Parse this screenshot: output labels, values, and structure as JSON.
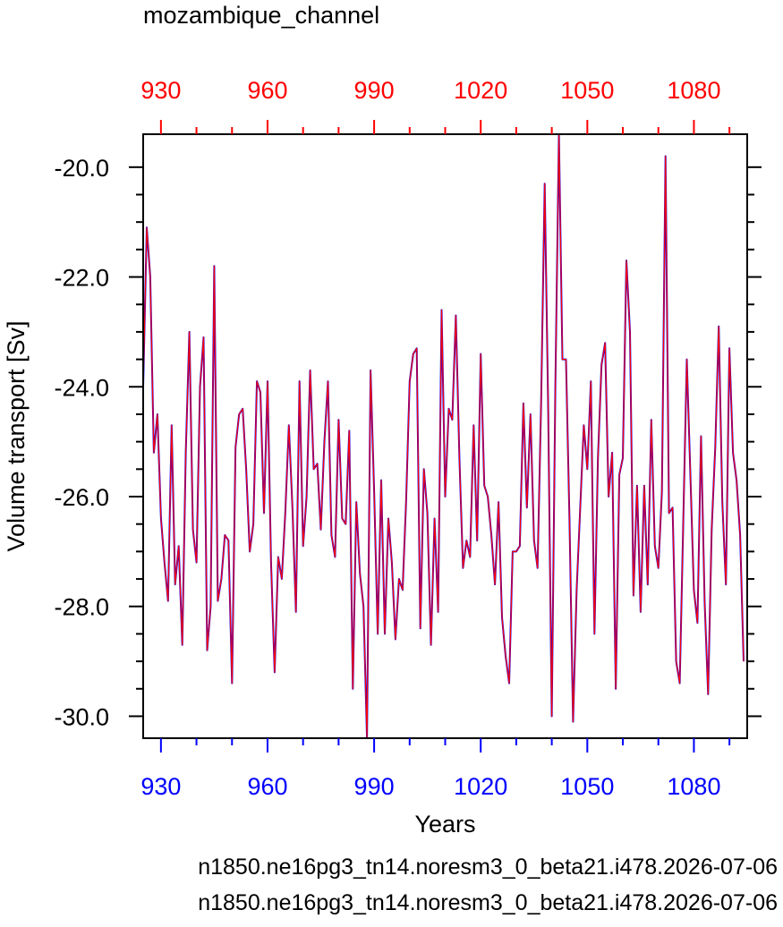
{
  "chart_data": {
    "type": "line",
    "title": "mozambique_channel",
    "xlabel": "Years",
    "ylabel": "Volume transport [Sv]",
    "xlim": [
      925,
      1095
    ],
    "ylim": [
      -30.4,
      -19.4
    ],
    "x_ticks": [
      930,
      960,
      990,
      1020,
      1050,
      1080
    ],
    "x_tick_labels": [
      "930",
      "960",
      "990",
      "1020",
      "1050",
      "1080"
    ],
    "y_ticks": [
      -20,
      -22,
      -24,
      -26,
      -28,
      -30
    ],
    "y_tick_labels": [
      "-20.0",
      "-22.0",
      "-24.0",
      "-26.0",
      "-28.0",
      "-30.0"
    ],
    "x_start": 925,
    "series": [
      {
        "name": "n1850.ne16pg3_tn14.noresm3_0_beta21.i478.2026-07-06",
        "color": "#0000ff",
        "values": [
          -24.0,
          -21.1,
          -22.0,
          -25.2,
          -24.5,
          -26.4,
          -27.2,
          -27.9,
          -24.7,
          -27.6,
          -26.9,
          -28.7,
          -25.2,
          -23.0,
          -26.6,
          -27.2,
          -24.0,
          -23.1,
          -28.8,
          -28.0,
          -21.8,
          -27.9,
          -27.5,
          -26.7,
          -26.8,
          -29.4,
          -25.1,
          -24.5,
          -24.4,
          -25.5,
          -27.0,
          -26.5,
          -23.9,
          -24.1,
          -26.3,
          -23.9,
          -27.2,
          -29.2,
          -27.1,
          -27.5,
          -26.3,
          -24.7,
          -26.2,
          -28.1,
          -23.9,
          -26.9,
          -26.0,
          -23.7,
          -25.5,
          -25.4,
          -26.6,
          -25.0,
          -23.9,
          -26.7,
          -27.1,
          -24.6,
          -26.4,
          -26.5,
          -24.8,
          -29.5,
          -26.1,
          -27.4,
          -28.0,
          -30.4,
          -23.7,
          -25.9,
          -28.5,
          -25.7,
          -28.5,
          -26.4,
          -27.2,
          -28.6,
          -27.5,
          -27.7,
          -26.1,
          -23.9,
          -23.4,
          -23.3,
          -28.4,
          -25.5,
          -26.3,
          -28.7,
          -26.4,
          -28.1,
          -22.6,
          -26.0,
          -24.4,
          -24.6,
          -22.7,
          -25.3,
          -27.3,
          -26.8,
          -27.1,
          -24.7,
          -26.8,
          -23.4,
          -25.8,
          -26.0,
          -26.7,
          -27.6,
          -26.1,
          -28.2,
          -28.9,
          -29.4,
          -27.0,
          -27.0,
          -26.9,
          -24.3,
          -26.2,
          -24.5,
          -26.8,
          -27.3,
          -24.3,
          -20.3,
          -24.4,
          -30.0,
          -24.0,
          -19.4,
          -23.5,
          -23.5,
          -26.5,
          -30.1,
          -27.7,
          -26.2,
          -24.7,
          -25.5,
          -23.9,
          -28.5,
          -25.3,
          -23.6,
          -23.2,
          -26.0,
          -25.2,
          -29.5,
          -25.6,
          -25.3,
          -21.7,
          -23.0,
          -27.8,
          -25.8,
          -28.1,
          -25.8,
          -27.6,
          -24.6,
          -26.9,
          -27.3,
          -25.9,
          -19.8,
          -26.3,
          -26.2,
          -29.0,
          -29.4,
          -26.5,
          -23.5,
          -25.6,
          -27.7,
          -28.3,
          -24.9,
          -27.9,
          -29.6,
          -26.6,
          -25.1,
          -22.9,
          -26.1,
          -27.6,
          -23.3,
          -25.2,
          -25.7,
          -26.7,
          -29.0
        ]
      },
      {
        "name": "n1850.ne16pg3_tn14.noresm3_0_beta21.i478.2026-07-06",
        "color": "#ff0000",
        "values": [
          -24.0,
          -21.1,
          -22.0,
          -25.2,
          -24.5,
          -26.4,
          -27.2,
          -27.9,
          -24.7,
          -27.6,
          -26.9,
          -28.7,
          -25.2,
          -23.0,
          -26.6,
          -27.2,
          -24.0,
          -23.1,
          -28.8,
          -28.0,
          -21.8,
          -27.9,
          -27.5,
          -26.7,
          -26.8,
          -29.4,
          -25.1,
          -24.5,
          -24.4,
          -25.5,
          -27.0,
          -26.5,
          -23.9,
          -24.1,
          -26.3,
          -23.9,
          -27.2,
          -29.2,
          -27.1,
          -27.5,
          -26.3,
          -24.7,
          -26.2,
          -28.1,
          -23.9,
          -26.9,
          -26.0,
          -23.7,
          -25.5,
          -25.4,
          -26.6,
          -25.0,
          -23.9,
          -26.7,
          -27.1,
          -24.6,
          -26.4,
          -26.5,
          -24.8,
          -29.5,
          -26.1,
          -27.4,
          -28.0,
          -30.4,
          -23.7,
          -25.9,
          -28.5,
          -25.7,
          -28.5,
          -26.4,
          -27.2,
          -28.6,
          -27.5,
          -27.7,
          -26.1,
          -23.9,
          -23.4,
          -23.3,
          -28.4,
          -25.5,
          -26.3,
          -28.7,
          -26.4,
          -28.1,
          -22.6,
          -26.0,
          -24.4,
          -24.6,
          -22.7,
          -25.3,
          -27.3,
          -26.8,
          -27.1,
          -24.7,
          -26.8,
          -23.4,
          -25.8,
          -26.0,
          -26.7,
          -27.6,
          -26.1,
          -28.2,
          -28.9,
          -29.4,
          -27.0,
          -27.0,
          -26.9,
          -24.3,
          -26.2,
          -24.5,
          -26.8,
          -27.3,
          -24.3,
          -20.3,
          -24.4,
          -30.0,
          -24.0,
          -19.4,
          -23.5,
          -23.5,
          -26.5,
          -30.1,
          -27.7,
          -26.2,
          -24.7,
          -25.5,
          -23.9,
          -28.5,
          -25.3,
          -23.6,
          -23.2,
          -26.0,
          -25.2,
          -29.5,
          -25.6,
          -25.3,
          -21.7,
          -23.0,
          -27.8,
          -25.8,
          -28.1,
          -25.8,
          -27.6,
          -24.6,
          -26.9,
          -27.3,
          -25.9,
          -19.8,
          -26.3,
          -26.2,
          -29.0,
          -29.4,
          -26.5,
          -23.5,
          -25.6,
          -27.7,
          -28.3,
          -24.9,
          -27.9,
          -29.6,
          -26.6,
          -25.1,
          -22.9,
          -26.1,
          -27.6,
          -23.3,
          -25.2,
          -25.7,
          -26.7,
          -29.0
        ]
      }
    ],
    "bottom_axis_color": "#0000ff",
    "top_axis_color": "#ff0000",
    "grid": false
  }
}
